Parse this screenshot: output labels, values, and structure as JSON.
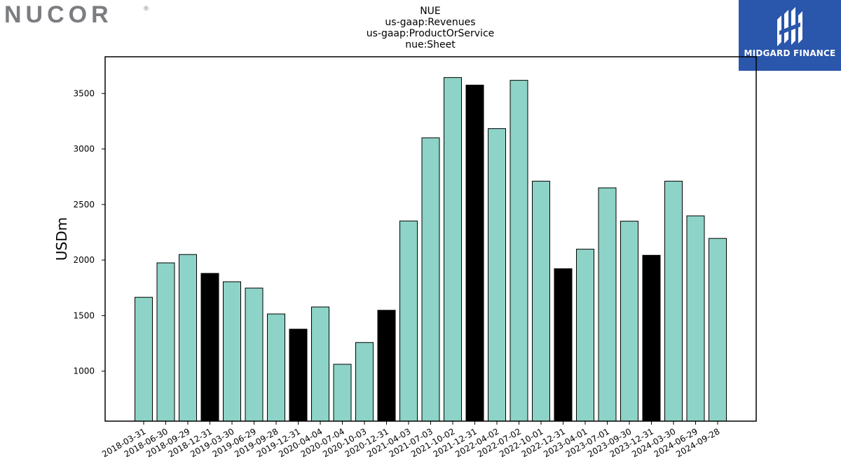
{
  "branding": {
    "left_logo": "NUCOR",
    "left_logo_mark": "®",
    "right_logo": "MIDGARD FINANCE"
  },
  "colors": {
    "bar_regular": "#8dd3c7",
    "bar_highlight": "#000000",
    "logo_left": "#7b7d80",
    "logo_right_bg": "#2a56ab"
  },
  "chart_data": {
    "type": "bar",
    "title_lines": [
      "NUE",
      "us-gaap:Revenues",
      "us-gaap:ProductOrService",
      "nue:Sheet"
    ],
    "ylabel": "USDm",
    "xlabel": "",
    "ylim": [
      550,
      3830
    ],
    "yticks": [
      1000,
      1500,
      2000,
      2500,
      3000,
      3500
    ],
    "categories": [
      "2018-03-31",
      "2018-06-30",
      "2018-09-29",
      "2018-12-31",
      "2019-03-30",
      "2019-06-29",
      "2019-09-28",
      "2019-12-31",
      "2020-04-04",
      "2020-07-04",
      "2020-10-03",
      "2020-12-31",
      "2021-04-03",
      "2021-07-03",
      "2021-10-02",
      "2021-12-31",
      "2022-04-02",
      "2022-07-02",
      "2022-10-01",
      "2022-12-31",
      "2023-04-01",
      "2023-07-01",
      "2023-09-30",
      "2023-12-31",
      "2024-03-30",
      "2024-06-29",
      "2024-09-28"
    ],
    "values": [
      1665,
      1975,
      2050,
      1880,
      1805,
      1748,
      1515,
      1378,
      1578,
      1062,
      1258,
      1548,
      2352,
      3100,
      3643,
      3575,
      3183,
      3618,
      2710,
      1922,
      2098,
      2650,
      2350,
      2043,
      2710,
      2398,
      2195
    ],
    "highlight": [
      false,
      false,
      false,
      true,
      false,
      false,
      false,
      true,
      false,
      false,
      false,
      true,
      false,
      false,
      false,
      true,
      false,
      false,
      false,
      true,
      false,
      false,
      false,
      true,
      false,
      false,
      false
    ],
    "grid": false,
    "legend": "none"
  }
}
